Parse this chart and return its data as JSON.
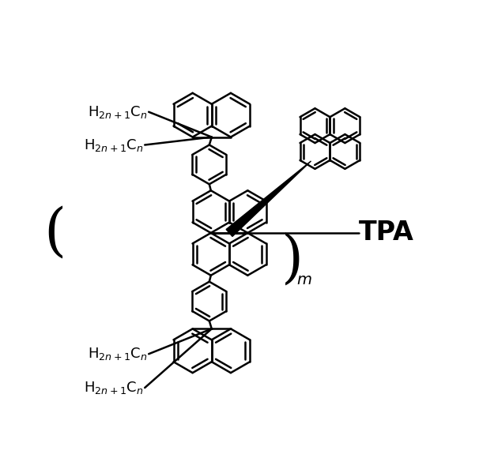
{
  "background_color": "#ffffff",
  "line_color": "#000000",
  "lw": 1.8,
  "fig_width": 6.06,
  "fig_height": 5.8,
  "dpi": 100,
  "label_top1": "H$_{2n+1}$C$_n$",
  "label_top2": "H$_{2n+1}$C$_n$",
  "label_bot1": "H$_{2n+1}$C$_n$",
  "label_bot2": "H$_{2n+1}$C$_n$",
  "tpa_label": "TPA",
  "subscript_m": "m"
}
